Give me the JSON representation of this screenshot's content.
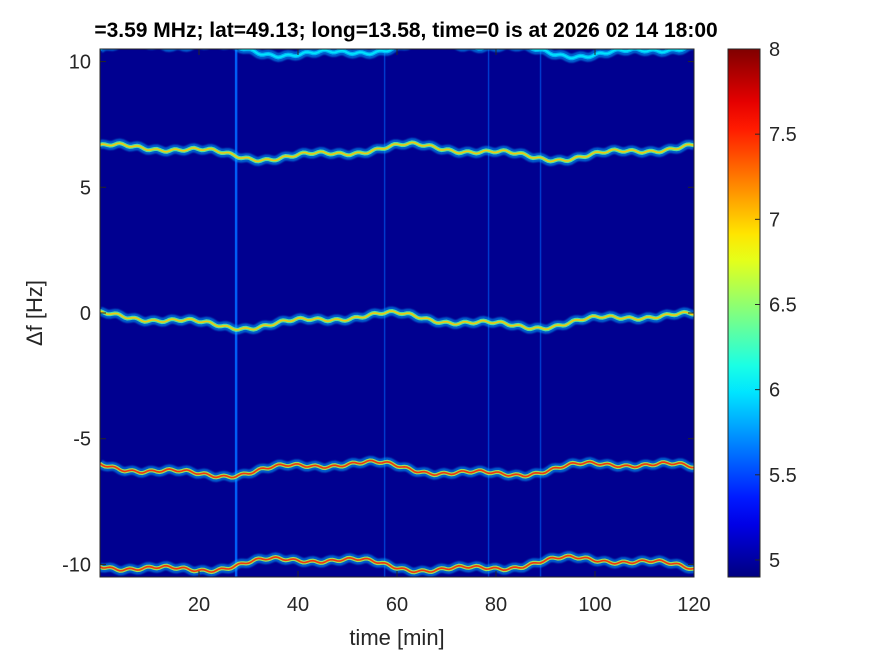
{
  "chart_data": {
    "type": "heatmap",
    "title": "=3.59 MHz;  lat=49.13; long=13.58, time=0 is at 2026 02 14 18:00",
    "xlabel": "time [min]",
    "ylabel": "Δf [Hz]",
    "xlim": [
      0,
      120
    ],
    "ylim": [
      -10.5,
      10.5
    ],
    "x_ticks": [
      20,
      40,
      60,
      80,
      100,
      120
    ],
    "x_tick_labels": [
      "20",
      "40",
      "60",
      "80",
      "100",
      "120"
    ],
    "y_ticks": [
      -10,
      -5,
      0,
      5,
      10
    ],
    "y_tick_labels": [
      "-10",
      "-5",
      "0",
      "5",
      "10"
    ],
    "colorbar": {
      "range": [
        4.9,
        8
      ],
      "ticks": [
        5,
        5.5,
        6,
        6.5,
        7,
        7.5,
        8
      ],
      "tick_labels": [
        "5",
        "5.5",
        "6",
        "6.5",
        "7",
        "7.5",
        "8"
      ],
      "colormap": "jet"
    },
    "background_value": 4.95,
    "bands": [
      {
        "center_hz": 10.5,
        "peak_value": 6.0
      },
      {
        "center_hz": 6.4,
        "peak_value": 7.0
      },
      {
        "center_hz": -0.3,
        "peak_value": 7.0
      },
      {
        "center_hz": -6.2,
        "peak_value": 7.5
      },
      {
        "center_hz": -10.0,
        "peak_value": 7.5
      }
    ],
    "vertical_streaks_min": [
      27.5,
      57.5,
      78.5,
      89
    ]
  }
}
